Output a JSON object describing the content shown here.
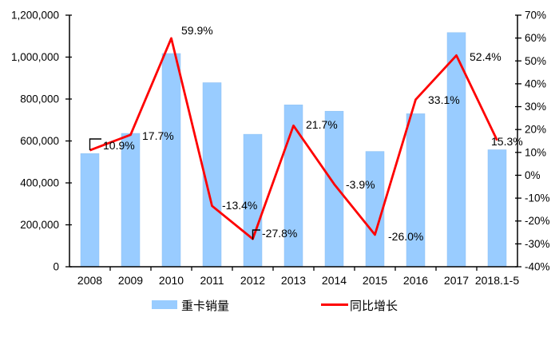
{
  "colors": {
    "bar": "#99CCFF",
    "bar_edge": "#8FC0F2",
    "line": "#FE0000",
    "axis": "#000000",
    "background": "#FFFFFF"
  },
  "legend": {
    "bar_label": "重卡销量",
    "line_label": "同比增长"
  },
  "chart_data": {
    "type": "bar+line combo",
    "title": "",
    "grid": false,
    "legend_position": "bottom",
    "categories": [
      "2008",
      "2009",
      "2010",
      "2011",
      "2012",
      "2013",
      "2014",
      "2015",
      "2016",
      "2017",
      "2018.1-5"
    ],
    "series": [
      {
        "name": "重卡销量",
        "type": "bar",
        "axis": "left",
        "values": [
          540000,
          636000,
          1017000,
          878000,
          632000,
          772000,
          742000,
          550000,
          730000,
          1117000,
          558000
        ]
      },
      {
        "name": "同比增长",
        "type": "line",
        "axis": "right",
        "values_pct": [
          10.9,
          17.7,
          59.9,
          -13.4,
          -27.8,
          21.7,
          -3.9,
          -26.0,
          33.1,
          52.4,
          15.3
        ],
        "point_labels": [
          "10.9%",
          "17.7%",
          "59.9%",
          "-13.4%",
          "-27.8%",
          "21.7%",
          "-3.9%",
          "-26.0%",
          "33.1%",
          "52.4%",
          "15.3%"
        ]
      }
    ],
    "left_axis": {
      "min": 0,
      "max": 1200000,
      "step": 200000,
      "tick_labels": [
        "1,200,000",
        "1,000,000",
        "800,000",
        "600,000",
        "400,000",
        "200,000",
        "0"
      ]
    },
    "right_axis": {
      "min": -40,
      "max": 70,
      "step": 10,
      "tick_labels": [
        "70%",
        "60%",
        "50%",
        "40%",
        "30%",
        "20%",
        "10%",
        "0%",
        "-10%",
        "-20%",
        "-30%",
        "-40%"
      ]
    }
  }
}
